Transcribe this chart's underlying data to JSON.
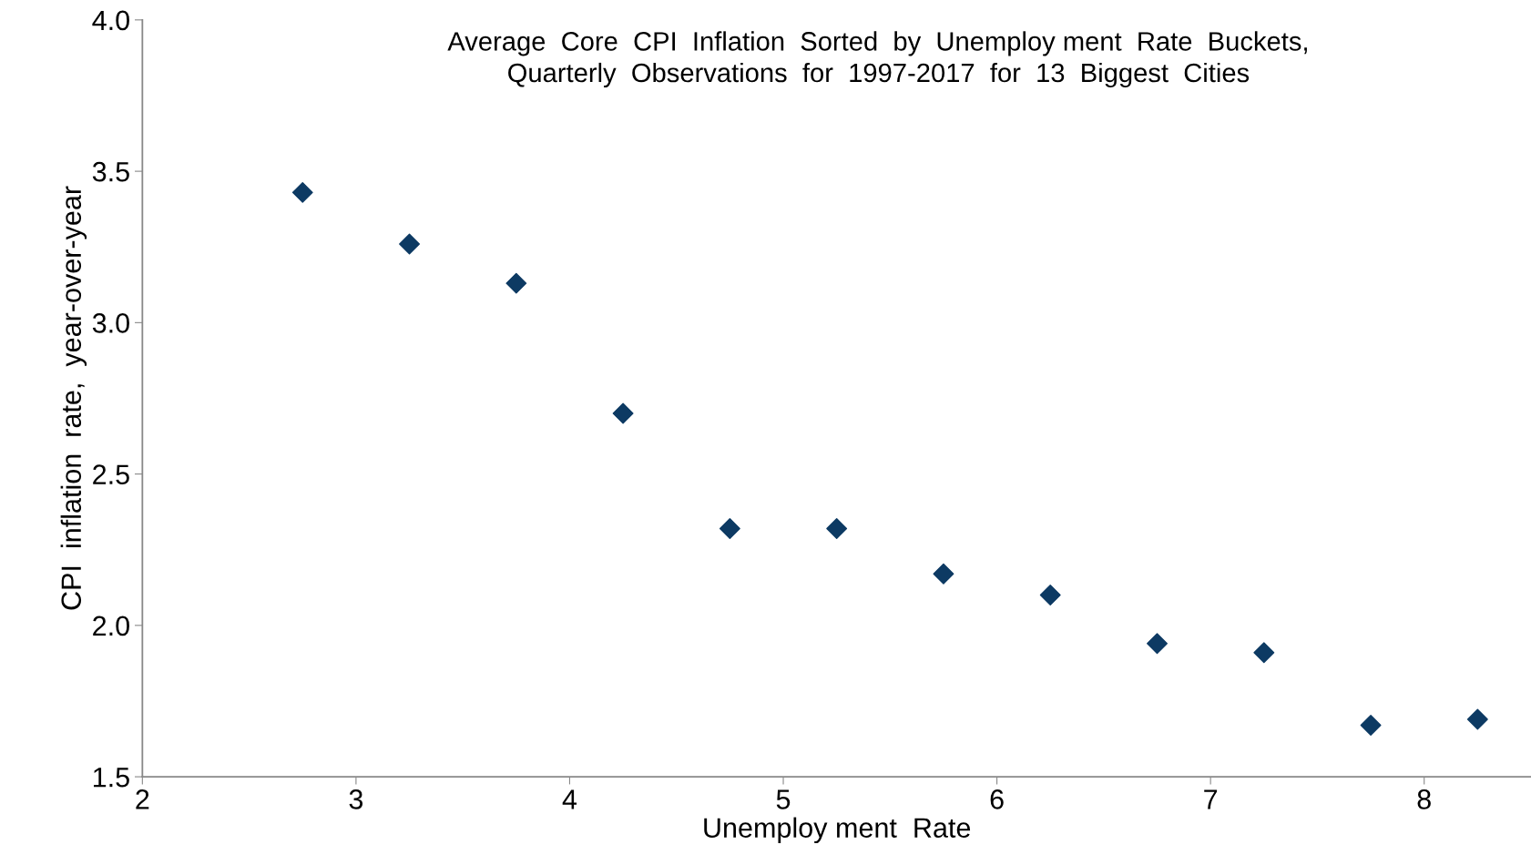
{
  "chart_data": {
    "type": "scatter",
    "title": "Average  Core  CPI  Inflation  Sorted  by  Unemploy ment  Rate  Buckets,\nQuarterly  Observations  for  1997-2017  for  13  Biggest  Cities",
    "xlabel": "Unemploy ment  Rate",
    "ylabel": "CPI  inflation  rate,  year-over-year",
    "x": [
      2.75,
      3.25,
      3.75,
      4.25,
      4.75,
      5.25,
      5.75,
      6.25,
      6.75,
      7.25,
      7.75,
      8.25
    ],
    "series": [
      {
        "color": "#0d3a63",
        "values": [
          3.43,
          3.26,
          3.13,
          2.7,
          2.32,
          2.32,
          2.17,
          2.1,
          1.94,
          1.91,
          1.67,
          1.69
        ]
      }
    ],
    "xlim": [
      2,
      8.5
    ],
    "xticks": [
      2,
      3,
      4,
      5,
      6,
      7,
      8
    ],
    "ylim": [
      1.5,
      4.0
    ],
    "yticks": [
      {
        "value": 1.5,
        "label": "1.5"
      },
      {
        "value": 2.0,
        "label": "2.0"
      },
      {
        "value": 2.5,
        "label": "2.5"
      },
      {
        "value": 3.0,
        "label": "3.0"
      },
      {
        "value": 3.5,
        "label": "3.5"
      },
      {
        "value": 4.0,
        "label": "4.0"
      }
    ],
    "marker": "diamond",
    "grid": false
  }
}
